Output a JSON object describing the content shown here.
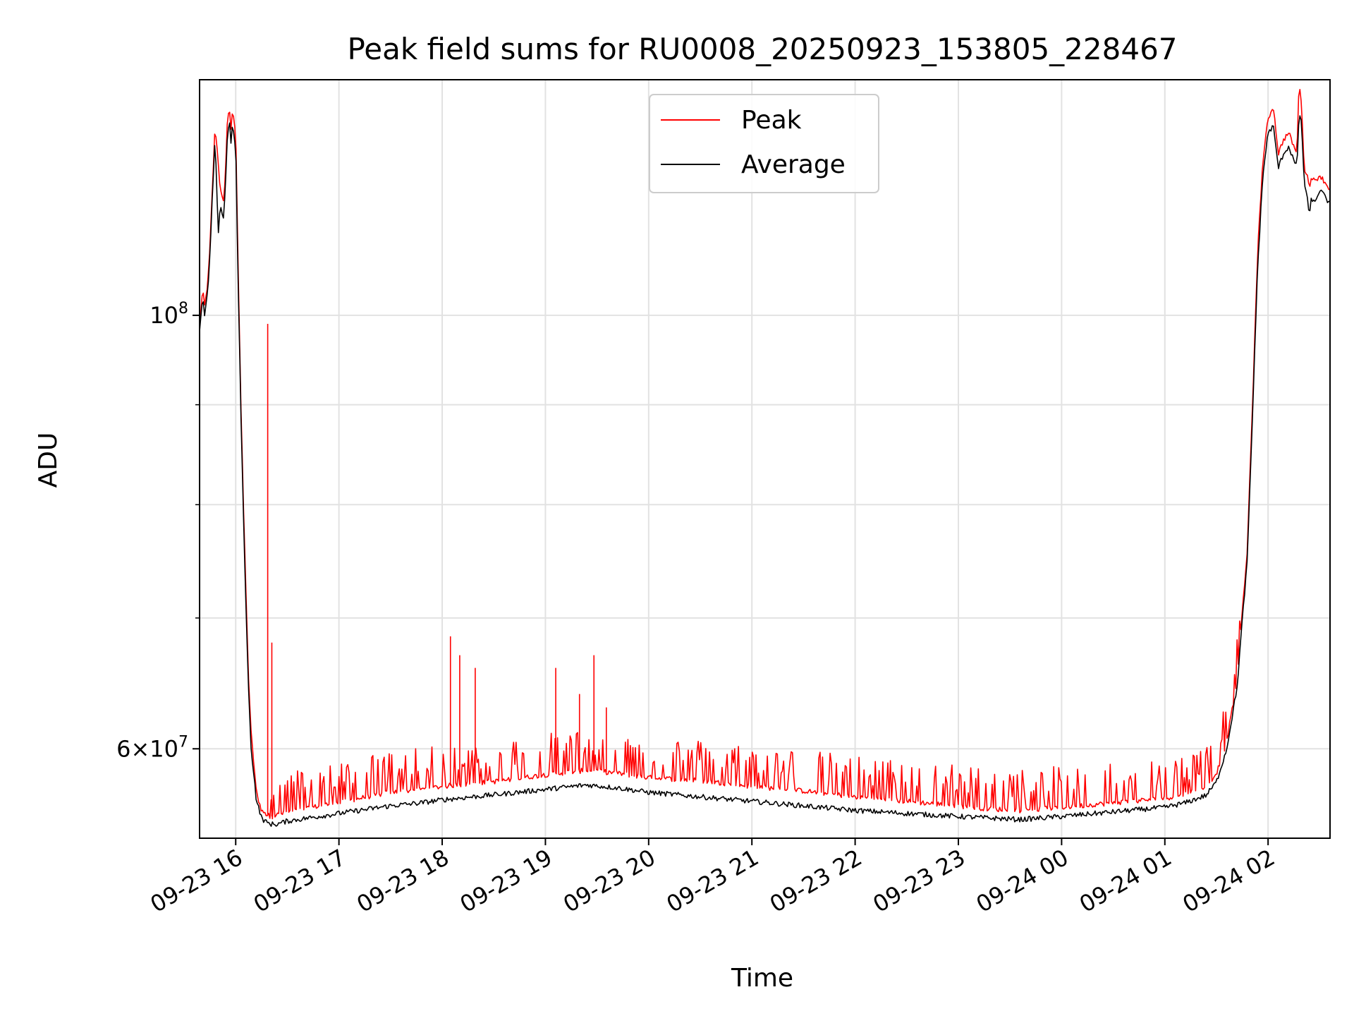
{
  "chart_data": {
    "type": "line",
    "title": "Peak field sums for RU0008_20250923_153805_228467",
    "xlabel": "Time",
    "ylabel": "ADU",
    "yscale": "log",
    "ylim": [
      54000000,
      132000000
    ],
    "xlim": [
      -0.35,
      10.6
    ],
    "x_reference": "09-23 16:00",
    "x_unit": "hours",
    "grid": true,
    "legend_position": "upper center",
    "x_ticks": [
      {
        "value": 0,
        "label": "09-23 16"
      },
      {
        "value": 1,
        "label": "09-23 17"
      },
      {
        "value": 2,
        "label": "09-23 18"
      },
      {
        "value": 3,
        "label": "09-23 19"
      },
      {
        "value": 4,
        "label": "09-23 20"
      },
      {
        "value": 5,
        "label": "09-23 21"
      },
      {
        "value": 6,
        "label": "09-23 22"
      },
      {
        "value": 7,
        "label": "09-23 23"
      },
      {
        "value": 8,
        "label": "09-24 00"
      },
      {
        "value": 9,
        "label": "09-24 01"
      },
      {
        "value": 10,
        "label": "09-24 02"
      }
    ],
    "y_ticks_major": [
      {
        "value": 60000000,
        "base": "6",
        "exp": "7",
        "label_type": "mantissa"
      },
      {
        "value": 100000000,
        "base": "10",
        "exp": "8",
        "label_type": "power"
      }
    ],
    "y_ticks_minor": [
      70000000,
      80000000,
      90000000
    ],
    "series": [
      {
        "name": "Peak",
        "color": "#ff0000",
        "x": [
          -0.35,
          -0.32,
          -0.3,
          -0.27,
          -0.25,
          -0.22,
          -0.2,
          -0.17,
          -0.15,
          -0.12,
          -0.1,
          -0.08,
          -0.06,
          -0.05,
          -0.03,
          -0.02,
          -0.01,
          0.0,
          0.02,
          0.05,
          0.08,
          0.1,
          0.12,
          0.15,
          0.2,
          0.25,
          0.3,
          0.35,
          0.4,
          0.45,
          0.5,
          0.6,
          0.7,
          0.8,
          1.0,
          1.2,
          1.5,
          1.8,
          2.0,
          2.3,
          2.6,
          3.0,
          3.4,
          3.7,
          4.0,
          4.5,
          5.0,
          5.5,
          6.0,
          6.5,
          7.0,
          7.3,
          7.6,
          8.0,
          8.5,
          9.0,
          9.2,
          9.4,
          9.5,
          9.6,
          9.7,
          9.8,
          9.85,
          9.9,
          9.95,
          10.0,
          10.05,
          10.1,
          10.15,
          10.2,
          10.25,
          10.28,
          10.3,
          10.32,
          10.35,
          10.38,
          10.4,
          10.42,
          10.45,
          10.5,
          10.55,
          10.6
        ],
        "y": [
          99000000,
          103000000,
          101000000,
          104000000,
          108000000,
          118000000,
          125000000,
          120000000,
          116000000,
          114000000,
          118000000,
          126000000,
          128000000,
          124000000,
          127000000,
          126000000,
          125000000,
          124000000,
          108000000,
          90000000,
          78000000,
          72000000,
          66000000,
          61000000,
          57000000,
          55800000,
          55500000,
          55400000,
          55500000,
          55600000,
          55700000,
          55800000,
          55900000,
          56100000,
          56300000,
          56600000,
          57000000,
          57200000,
          57400000,
          57600000,
          57800000,
          58200000,
          58500000,
          58300000,
          58000000,
          57800000,
          57400000,
          57100000,
          56700000,
          56400000,
          56100000,
          55900000,
          55800000,
          56000000,
          56300000,
          56600000,
          56900000,
          57400000,
          58300000,
          60500000,
          65000000,
          76000000,
          90000000,
          108000000,
          120000000,
          126000000,
          128000000,
          121000000,
          123000000,
          124000000,
          122000000,
          121000000,
          132000000,
          129000000,
          119000000,
          118000000,
          116000000,
          118000000,
          117000000,
          118000000,
          117000000,
          116000000
        ]
      },
      {
        "name": "Average",
        "color": "#000000",
        "x": [
          -0.35,
          -0.32,
          -0.3,
          -0.27,
          -0.25,
          -0.22,
          -0.2,
          -0.17,
          -0.15,
          -0.12,
          -0.1,
          -0.08,
          -0.06,
          -0.05,
          -0.03,
          -0.02,
          -0.01,
          0.0,
          0.02,
          0.05,
          0.08,
          0.1,
          0.12,
          0.15,
          0.2,
          0.25,
          0.3,
          0.35,
          0.4,
          0.45,
          0.5,
          0.6,
          0.7,
          0.8,
          1.0,
          1.2,
          1.5,
          1.8,
          2.0,
          2.3,
          2.6,
          3.0,
          3.4,
          3.7,
          4.0,
          4.5,
          5.0,
          5.5,
          6.0,
          6.5,
          7.0,
          7.3,
          7.6,
          8.0,
          8.5,
          9.0,
          9.2,
          9.4,
          9.5,
          9.6,
          9.7,
          9.8,
          9.85,
          9.9,
          9.95,
          10.0,
          10.05,
          10.1,
          10.15,
          10.2,
          10.25,
          10.28,
          10.3,
          10.32,
          10.35,
          10.38,
          10.4,
          10.42,
          10.45,
          10.5,
          10.55,
          10.6
        ],
        "y": [
          98000000,
          102000000,
          100000000,
          103000000,
          107000000,
          117000000,
          123000000,
          110000000,
          114000000,
          112000000,
          116000000,
          124000000,
          126000000,
          122000000,
          125000000,
          124000000,
          123000000,
          122000000,
          106000000,
          89000000,
          77000000,
          71000000,
          65000000,
          60000000,
          56500000,
          55300000,
          55000000,
          54900000,
          54900000,
          55000000,
          55100000,
          55200000,
          55300000,
          55400000,
          55600000,
          55800000,
          56100000,
          56300000,
          56500000,
          56700000,
          56900000,
          57200000,
          57500000,
          57300000,
          57000000,
          56700000,
          56400000,
          56100000,
          55800000,
          55600000,
          55400000,
          55300000,
          55200000,
          55400000,
          55700000,
          56000000,
          56300000,
          56800000,
          57700000,
          60000000,
          64500000,
          75000000,
          89000000,
          106000000,
          118000000,
          124000000,
          125000000,
          119000000,
          121000000,
          122000000,
          120000000,
          119000000,
          127000000,
          126000000,
          117000000,
          115000000,
          112000000,
          115000000,
          114000000,
          116000000,
          115000000,
          114000000
        ]
      }
    ],
    "spikes": [
      {
        "x": 0.31,
        "y": 99000000
      },
      {
        "x": 0.35,
        "y": 68000000
      },
      {
        "x": 2.08,
        "y": 68500000
      },
      {
        "x": 2.17,
        "y": 67000000
      },
      {
        "x": 2.32,
        "y": 66000000
      },
      {
        "x": 3.1,
        "y": 66000000
      },
      {
        "x": 3.33,
        "y": 64000000
      },
      {
        "x": 3.47,
        "y": 67000000
      },
      {
        "x": 3.59,
        "y": 63000000
      }
    ]
  }
}
